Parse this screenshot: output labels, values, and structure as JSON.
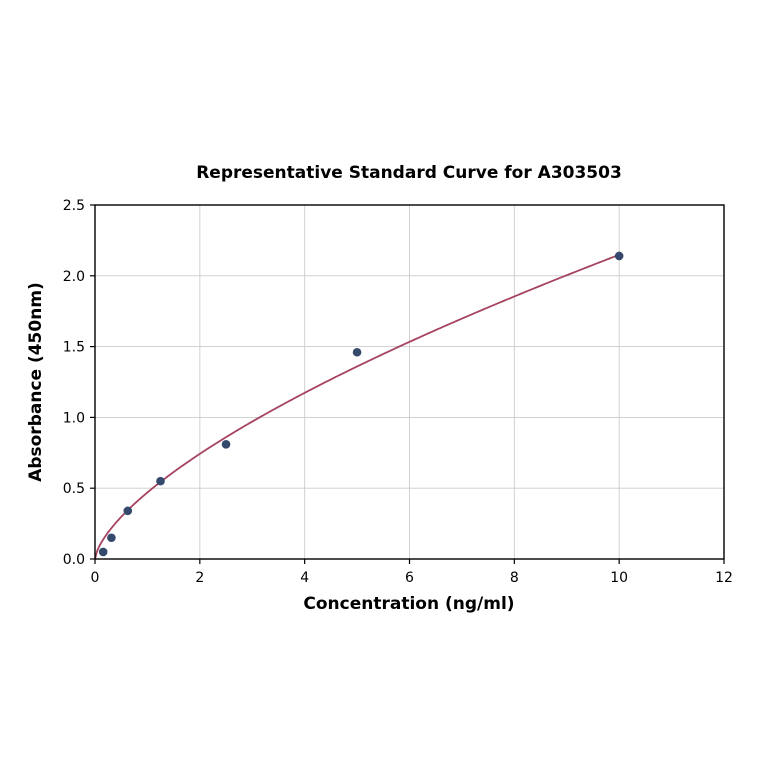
{
  "page": {
    "background": "#ffffff"
  },
  "chart_data": {
    "type": "scatter",
    "title": "Representative Standard Curve for A303503",
    "xlabel": "Concentration (ng/ml)",
    "ylabel": "Absorbance (450nm)",
    "xlim": [
      0,
      12
    ],
    "ylim": [
      0,
      2.5
    ],
    "xticks": [
      0,
      2,
      4,
      6,
      8,
      10,
      12
    ],
    "yticks": [
      0,
      0.5,
      1,
      1.5,
      2,
      2.5
    ],
    "grid": true,
    "legend_position": "none",
    "grid_color": "#cccccc",
    "axis_color": "#000000",
    "series": [
      {
        "name": "standard-points",
        "type": "scatter",
        "x": [
          0.156,
          0.313,
          0.625,
          1.25,
          2.5,
          5,
          10
        ],
        "y": [
          0.05,
          0.15,
          0.34,
          0.55,
          0.81,
          1.46,
          2.14
        ],
        "color": "#34496b"
      },
      {
        "name": "fitted-curve",
        "type": "line",
        "fit": {
          "form": "power",
          "a": 0.47,
          "b": 0.66,
          "x_range": [
            0,
            10
          ]
        },
        "color": "#a64460"
      }
    ]
  }
}
